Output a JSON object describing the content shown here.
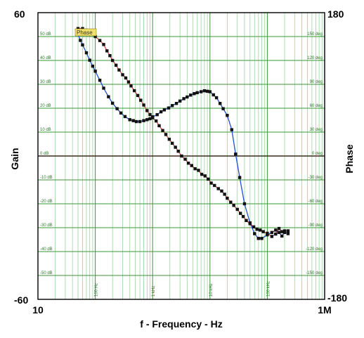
{
  "chart_data": {
    "type": "line",
    "xlabel": "f - Frequency - Hz",
    "ylabel_left": "Gain",
    "ylabel_right": "Phase",
    "x_scale": "log",
    "xlim": [
      10,
      1000000
    ],
    "ylim_left": [
      -60,
      60
    ],
    "ylim_right": [
      -180,
      180
    ],
    "grid": true,
    "x_end_labels": {
      "left": "10",
      "right": "1M"
    },
    "y_left_end_labels": {
      "top": "60",
      "bottom": "-60"
    },
    "y_right_end_labels": {
      "top": "180",
      "bottom": "-180"
    },
    "gain_tick_labels": [
      {
        "value": 50,
        "text": "50 dB"
      },
      {
        "value": 40,
        "text": "40 dB"
      },
      {
        "value": 30,
        "text": "30 dB"
      },
      {
        "value": 20,
        "text": "20 dB"
      },
      {
        "value": 10,
        "text": "10 dB"
      },
      {
        "value": 0,
        "text": "0 dB"
      },
      {
        "value": -10,
        "text": "-10 dB"
      },
      {
        "value": -20,
        "text": "-20 dB"
      },
      {
        "value": -30,
        "text": "-30 dB"
      },
      {
        "value": -40,
        "text": "-40 dB"
      },
      {
        "value": -50,
        "text": "-50 dB"
      }
    ],
    "phase_tick_labels": [
      {
        "value": 150,
        "text": "150 deg"
      },
      {
        "value": 120,
        "text": "120 deg"
      },
      {
        "value": 90,
        "text": "90 deg"
      },
      {
        "value": 60,
        "text": "60 deg"
      },
      {
        "value": 30,
        "text": "30 deg"
      },
      {
        "value": 0,
        "text": "0 deg"
      },
      {
        "value": -30,
        "text": "-30 deg"
      },
      {
        "value": -60,
        "text": "-60 deg"
      },
      {
        "value": -90,
        "text": "-90 deg"
      },
      {
        "value": -120,
        "text": "-120 deg"
      },
      {
        "value": -150,
        "text": "-150 deg"
      }
    ],
    "freq_tick_labels": [
      {
        "value": 100,
        "text": "100 Hz"
      },
      {
        "value": 1000,
        "text": "1 kHz"
      },
      {
        "value": 10000,
        "text": "10 kHz"
      },
      {
        "value": 100000,
        "text": "100 kHz"
      }
    ],
    "legend_tag": "Phase",
    "colors": {
      "gain_line": "#1f4fd8",
      "phase_line": "#e04848",
      "marker": "#111111",
      "grid_major": "#3a9a3a",
      "grid_minor": "#9bd49b",
      "zero_line": "#3a2a1a",
      "tag_fill": "#f2e06a"
    },
    "series": [
      {
        "axis": "left",
        "x": [
          50,
          55,
          60,
          70,
          80,
          90,
          100,
          120,
          140,
          170,
          200,
          240,
          280,
          330,
          400,
          460,
          520,
          600,
          700,
          800,
          900,
          1000,
          1200,
          1400,
          1600,
          1900,
          2200,
          2600,
          3000,
          3500,
          4000,
          4600,
          5300,
          6000,
          7000,
          8000,
          9000,
          10000,
          11500,
          13000,
          15000,
          17000,
          20000,
          24000,
          28000,
          33000,
          40000,
          50000,
          60000,
          70000,
          80000,
          100000,
          120000,
          140000,
          160000,
          180000,
          200000,
          230000
        ],
        "y": [
          51.0,
          48.4,
          46.5,
          43.2,
          40.1,
          37.6,
          35.5,
          31.7,
          28.4,
          24.8,
          22.1,
          19.8,
          18.0,
          16.5,
          15.2,
          14.8,
          14.4,
          14.4,
          14.8,
          15.2,
          15.6,
          16.4,
          17.3,
          18.5,
          19.3,
          20.1,
          21.1,
          22.0,
          23.0,
          24.0,
          24.7,
          25.5,
          26.1,
          26.5,
          26.9,
          27.3,
          27.1,
          26.9,
          25.6,
          24.4,
          22.0,
          19.8,
          17.0,
          11.0,
          0.8,
          -9.0,
          -20.0,
          -28.0,
          -32.5,
          -34.5,
          -34.5,
          -33.0,
          -32.0,
          -31.0,
          -32.0,
          -33.5,
          -32.0,
          -32.5
        ]
      },
      {
        "axis": "right",
        "x": [
          50,
          60,
          70,
          80,
          100,
          120,
          140,
          160,
          180,
          200,
          230,
          260,
          300,
          340,
          380,
          420,
          480,
          550,
          620,
          700,
          800,
          900,
          1000,
          1150,
          1300,
          1500,
          1700,
          1950,
          2200,
          2500,
          2800,
          3200,
          3700,
          4200,
          4800,
          5500,
          6300,
          7200,
          8200,
          9300,
          10500,
          12000,
          14000,
          16000,
          18000,
          20000,
          23000,
          26000,
          30000,
          34000,
          38000,
          43000,
          50000,
          58000,
          66000,
          75000,
          85000,
          100000,
          120000,
          140000,
          160000,
          180000,
          200000,
          230000
        ],
        "y": [
          160,
          160,
          158,
          155,
          150,
          145,
          140,
          132,
          126,
          120,
          114,
          108,
          102,
          98,
          93,
          88,
          82,
          76,
          70,
          64,
          57,
          52,
          48,
          44,
          38,
          32,
          27,
          21,
          16,
          11,
          6,
          0,
          -4,
          -9,
          -12,
          -16,
          -18,
          -23,
          -25,
          -29,
          -34,
          -37,
          -41,
          -44,
          -48,
          -53,
          -58,
          -62,
          -67,
          -72,
          -76,
          -81,
          -85,
          -89,
          -92,
          -93,
          -95,
          -97,
          -101,
          -98,
          -91,
          -95,
          -94,
          -94
        ]
      }
    ]
  }
}
